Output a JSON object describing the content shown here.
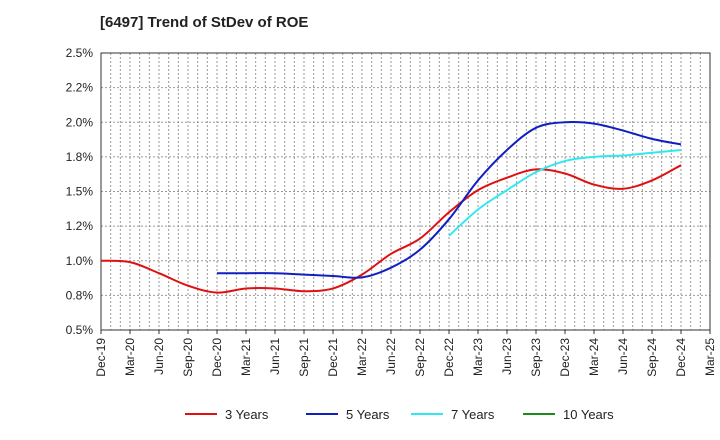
{
  "chart_data": {
    "type": "line",
    "title": "[6497]  Trend of StDev of ROE",
    "xlabel": "",
    "ylabel": "",
    "x_ticks": [
      "Dec-19",
      "Mar-20",
      "Jun-20",
      "Sep-20",
      "Dec-20",
      "Mar-21",
      "Jun-21",
      "Sep-21",
      "Dec-21",
      "Mar-22",
      "Jun-22",
      "Sep-22",
      "Dec-22",
      "Mar-23",
      "Jun-23",
      "Sep-23",
      "Dec-23",
      "Mar-24",
      "Jun-24",
      "Sep-24",
      "Dec-24",
      "Mar-25"
    ],
    "y_ticks": [
      "0.5%",
      "0.8%",
      "1.0%",
      "1.2%",
      "1.5%",
      "1.8%",
      "2.0%",
      "2.2%",
      "2.5%"
    ],
    "ylim": [
      0.5,
      2.5
    ],
    "grid": true,
    "legend_position": "bottom",
    "series": [
      {
        "name": "3 Years",
        "color": "#e01010",
        "points": [
          [
            "Dec-19",
            1.0
          ],
          [
            "Mar-20",
            0.99
          ],
          [
            "Jun-20",
            0.91
          ],
          [
            "Sep-20",
            0.82
          ],
          [
            "Dec-20",
            0.77
          ],
          [
            "Mar-21",
            0.8
          ],
          [
            "Jun-21",
            0.8
          ],
          [
            "Sep-21",
            0.78
          ],
          [
            "Dec-21",
            0.8
          ],
          [
            "Mar-22",
            0.9
          ],
          [
            "Jun-22",
            1.05
          ],
          [
            "Sep-22",
            1.16
          ],
          [
            "Dec-22",
            1.35
          ],
          [
            "Mar-23",
            1.51
          ],
          [
            "Jun-23",
            1.6
          ],
          [
            "Sep-23",
            1.66
          ],
          [
            "Dec-23",
            1.63
          ],
          [
            "Mar-24",
            1.55
          ],
          [
            "Jun-24",
            1.52
          ],
          [
            "Sep-24",
            1.58
          ],
          [
            "Dec-24",
            1.69
          ]
        ]
      },
      {
        "name": "5 Years",
        "color": "#1020c0",
        "points": [
          [
            "Dec-20",
            0.91
          ],
          [
            "Mar-21",
            0.91
          ],
          [
            "Jun-21",
            0.91
          ],
          [
            "Sep-21",
            0.9
          ],
          [
            "Dec-21",
            0.89
          ],
          [
            "Mar-22",
            0.88
          ],
          [
            "Jun-22",
            0.95
          ],
          [
            "Sep-22",
            1.08
          ],
          [
            "Dec-22",
            1.3
          ],
          [
            "Mar-23",
            1.58
          ],
          [
            "Jun-23",
            1.8
          ],
          [
            "Sep-23",
            1.96
          ],
          [
            "Dec-23",
            2.0
          ],
          [
            "Mar-24",
            1.99
          ],
          [
            "Jun-24",
            1.94
          ],
          [
            "Sep-24",
            1.88
          ],
          [
            "Dec-24",
            1.84
          ]
        ]
      },
      {
        "name": "7 Years",
        "color": "#30e8f0",
        "points": [
          [
            "Dec-22",
            1.18
          ],
          [
            "Mar-23",
            1.37
          ],
          [
            "Jun-23",
            1.51
          ],
          [
            "Sep-23",
            1.64
          ],
          [
            "Dec-23",
            1.72
          ],
          [
            "Mar-24",
            1.75
          ],
          [
            "Jun-24",
            1.76
          ],
          [
            "Sep-24",
            1.78
          ],
          [
            "Dec-24",
            1.8
          ]
        ]
      },
      {
        "name": "10 Years",
        "color": "#1a8a1a",
        "points": []
      }
    ]
  }
}
